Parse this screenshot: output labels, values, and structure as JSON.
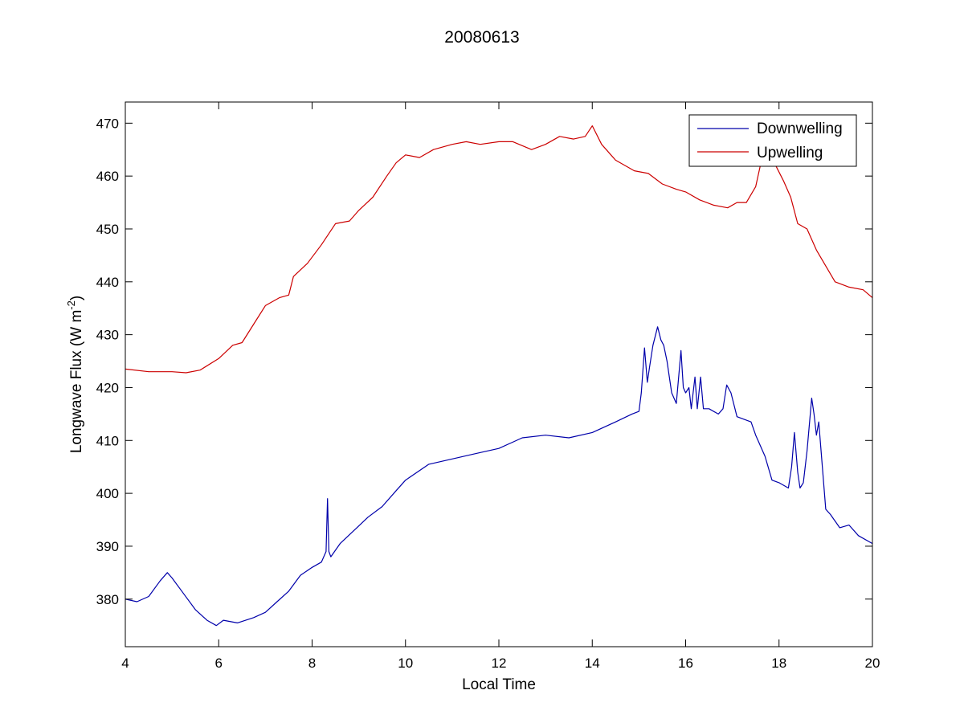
{
  "chart_data": {
    "type": "line",
    "title": "20080613",
    "xlabel": "Local Time",
    "ylabel": "Longwave Flux (W m",
    "ylabel_superscript": "-2",
    "ylabel_suffix": ")",
    "xlim": [
      4,
      20
    ],
    "ylim": [
      371,
      474
    ],
    "xticks": [
      4,
      6,
      8,
      10,
      12,
      14,
      16,
      18,
      20
    ],
    "yticks": [
      380,
      390,
      400,
      410,
      420,
      430,
      440,
      450,
      460,
      470
    ],
    "grid": false,
    "legend_position": "top-right",
    "series": [
      {
        "name": "Downwelling",
        "color": "#0000aa",
        "x": [
          4.0,
          4.25,
          4.5,
          4.75,
          4.9,
          5.0,
          5.25,
          5.5,
          5.75,
          5.95,
          6.1,
          6.4,
          6.75,
          7.0,
          7.25,
          7.5,
          7.75,
          8.0,
          8.2,
          8.3,
          8.33,
          8.36,
          8.4,
          8.6,
          8.9,
          9.2,
          9.5,
          9.8,
          10.0,
          10.5,
          11.0,
          11.5,
          12.0,
          12.5,
          13.0,
          13.5,
          14.0,
          14.5,
          14.85,
          15.0,
          15.05,
          15.12,
          15.18,
          15.23,
          15.3,
          15.4,
          15.47,
          15.53,
          15.6,
          15.7,
          15.8,
          15.9,
          15.95,
          16.0,
          16.07,
          16.12,
          16.2,
          16.25,
          16.32,
          16.38,
          16.5,
          16.7,
          16.8,
          16.88,
          16.97,
          17.1,
          17.4,
          17.5,
          17.7,
          17.85,
          18.0,
          18.2,
          18.27,
          18.33,
          18.4,
          18.45,
          18.52,
          18.6,
          18.7,
          18.75,
          18.8,
          18.85,
          18.9,
          19.0,
          19.1,
          19.3,
          19.5,
          19.7,
          20.0
        ],
        "y": [
          380,
          379.5,
          380.5,
          383.5,
          385,
          384,
          381,
          378,
          376,
          375,
          376,
          375.5,
          376.5,
          377.5,
          379.5,
          381.5,
          384.5,
          386,
          387,
          389,
          399,
          389,
          388,
          390.5,
          393,
          395.5,
          397.5,
          400.5,
          402.5,
          405.5,
          406.5,
          407.5,
          408.5,
          410.5,
          411,
          410.5,
          411.5,
          413.5,
          415,
          415.5,
          419,
          427.5,
          421,
          424,
          428,
          431.5,
          429,
          428,
          425,
          419,
          417,
          427,
          420,
          419,
          420,
          416,
          422,
          416,
          422,
          416,
          416,
          415,
          416,
          420.5,
          419,
          414.5,
          413.5,
          411,
          407,
          402.5,
          402,
          401,
          405,
          411.5,
          404,
          401,
          402,
          408,
          418,
          415,
          411,
          413.5,
          408,
          397,
          396,
          393.5,
          394,
          392,
          390.5
        ]
      },
      {
        "name": "Upwelling",
        "color": "#cc0000",
        "x": [
          4.0,
          4.5,
          5.0,
          5.3,
          5.6,
          6.0,
          6.3,
          6.5,
          6.75,
          7.0,
          7.3,
          7.5,
          7.6,
          7.9,
          8.2,
          8.5,
          8.8,
          9.0,
          9.3,
          9.6,
          9.8,
          10.0,
          10.3,
          10.6,
          11.0,
          11.3,
          11.6,
          12.0,
          12.3,
          12.7,
          13.0,
          13.3,
          13.6,
          13.85,
          14.0,
          14.2,
          14.5,
          14.9,
          15.2,
          15.5,
          15.8,
          16.0,
          16.3,
          16.6,
          16.9,
          17.1,
          17.3,
          17.5,
          17.65,
          17.75,
          17.9,
          18.1,
          18.25,
          18.4,
          18.6,
          18.8,
          19.0,
          19.2,
          19.5,
          19.8,
          20.0
        ],
        "y": [
          423.5,
          423,
          423,
          422.8,
          423.3,
          425.5,
          428,
          428.5,
          432,
          435.5,
          437,
          437.5,
          441,
          443.5,
          447,
          451,
          451.5,
          453.5,
          456,
          460,
          462.5,
          464,
          463.5,
          465,
          466,
          466.5,
          466,
          466.5,
          466.5,
          465,
          466,
          467.5,
          467,
          467.5,
          469.5,
          466,
          463,
          461,
          460.5,
          458.5,
          457.5,
          457,
          455.5,
          454.5,
          454,
          455,
          455,
          458,
          464,
          463,
          462.5,
          459,
          456,
          451,
          450,
          446,
          443,
          440,
          439,
          438.5,
          437
        ]
      }
    ]
  }
}
